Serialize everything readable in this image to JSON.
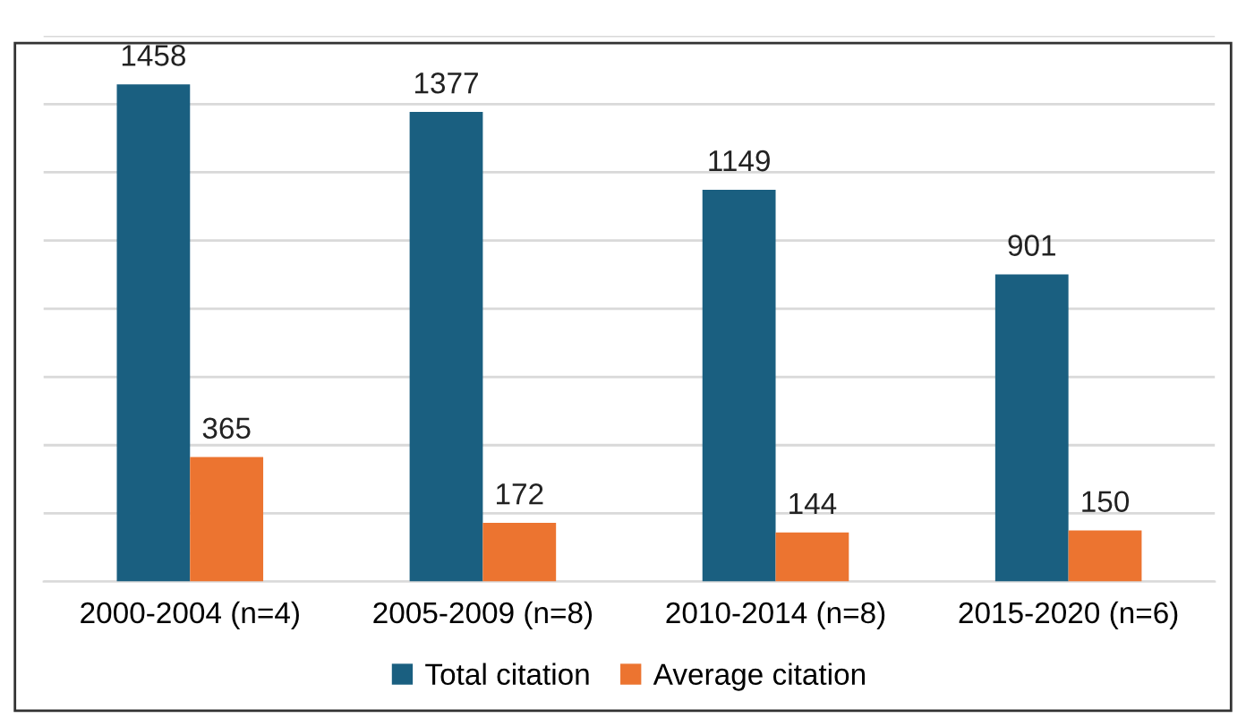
{
  "chart_data": {
    "type": "bar",
    "categories": [
      "2000-2004 (n=4)",
      "2005-2009 (n=8)",
      "2010-2014 (n=8)",
      "2015-2020 (n=6)"
    ],
    "series": [
      {
        "name": "Total citation",
        "color": "#1a5f80",
        "values": [
          1458,
          1377,
          1149,
          901
        ]
      },
      {
        "name": "Average citation",
        "color": "#ec7430",
        "values": [
          365,
          172,
          144,
          150
        ]
      }
    ],
    "ylim": [
      0,
      1600
    ],
    "yticks": [
      {
        "value": 0,
        "label": null
      },
      {
        "value": 200,
        "label": null
      },
      {
        "value": 400,
        "label": null
      },
      {
        "value": 600,
        "label": null
      },
      {
        "value": 800,
        "label": null
      },
      {
        "value": 1000,
        "label": null
      },
      {
        "value": 1200,
        "label": null
      },
      {
        "value": 1400,
        "label": null
      },
      {
        "value": 1600,
        "label": null
      }
    ],
    "grid": "y",
    "legend": "bottom",
    "data_labels": true,
    "tick_labels": "x"
  }
}
